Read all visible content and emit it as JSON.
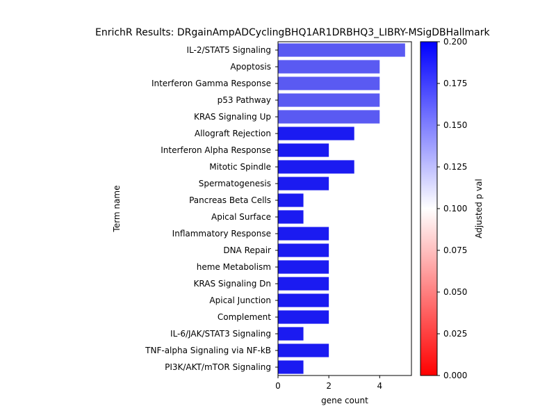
{
  "chart_data": {
    "type": "bar",
    "orientation": "horizontal",
    "title": "EnrichR Results: DRgainAmpADCyclingBHQ1AR1DRBHQ3_LIBRY-MSigDBHallmark",
    "xlabel": "gene count",
    "ylabel": "Term name",
    "xlim": [
      0,
      5.25
    ],
    "xticks": [
      "0",
      "2",
      "4"
    ],
    "categories": [
      "IL-2/STAT5 Signaling",
      "Apoptosis",
      "Interferon Gamma Response",
      "p53 Pathway",
      "KRAS Signaling Up",
      "Allograft Rejection",
      "Interferon Alpha Response",
      "Mitotic Spindle",
      "Spermatogenesis",
      "Pancreas Beta Cells",
      "Apical Surface",
      "Inflammatory Response",
      "DNA Repair",
      "heme Metabolism",
      "KRAS Signaling Dn",
      "Apical Junction",
      "Complement",
      "IL-6/JAK/STAT3 Signaling",
      "TNF-alpha Signaling via NF-kB",
      "PI3K/AKT/mTOR  Signaling"
    ],
    "values": [
      5,
      4,
      4,
      4,
      4,
      3,
      2,
      3,
      2,
      1,
      1,
      2,
      2,
      2,
      2,
      2,
      2,
      1,
      2,
      1
    ],
    "bar_colors": [
      "#5a5af2",
      "#5a5af2",
      "#5a5af2",
      "#5a5af2",
      "#5a5af2",
      "#1b1bf1",
      "#1b1bf1",
      "#1b1bf1",
      "#1b1bf1",
      "#1b1bf1",
      "#1b1bf1",
      "#1b1bf1",
      "#1b1bf1",
      "#1b1bf1",
      "#1b1bf1",
      "#1b1bf1",
      "#1b1bf1",
      "#1b1bf1",
      "#1b1bf1",
      "#1b1bf1"
    ],
    "grid": false,
    "colorbar": {
      "label": "Adjusted p val",
      "range": [
        0,
        0.2
      ],
      "ticks": [
        "0.000",
        "0.025",
        "0.050",
        "0.075",
        "0.100",
        "0.125",
        "0.150",
        "0.175",
        "0.200"
      ],
      "colors": [
        "#ff0000",
        "#ffffff",
        "#0000ff"
      ]
    }
  }
}
